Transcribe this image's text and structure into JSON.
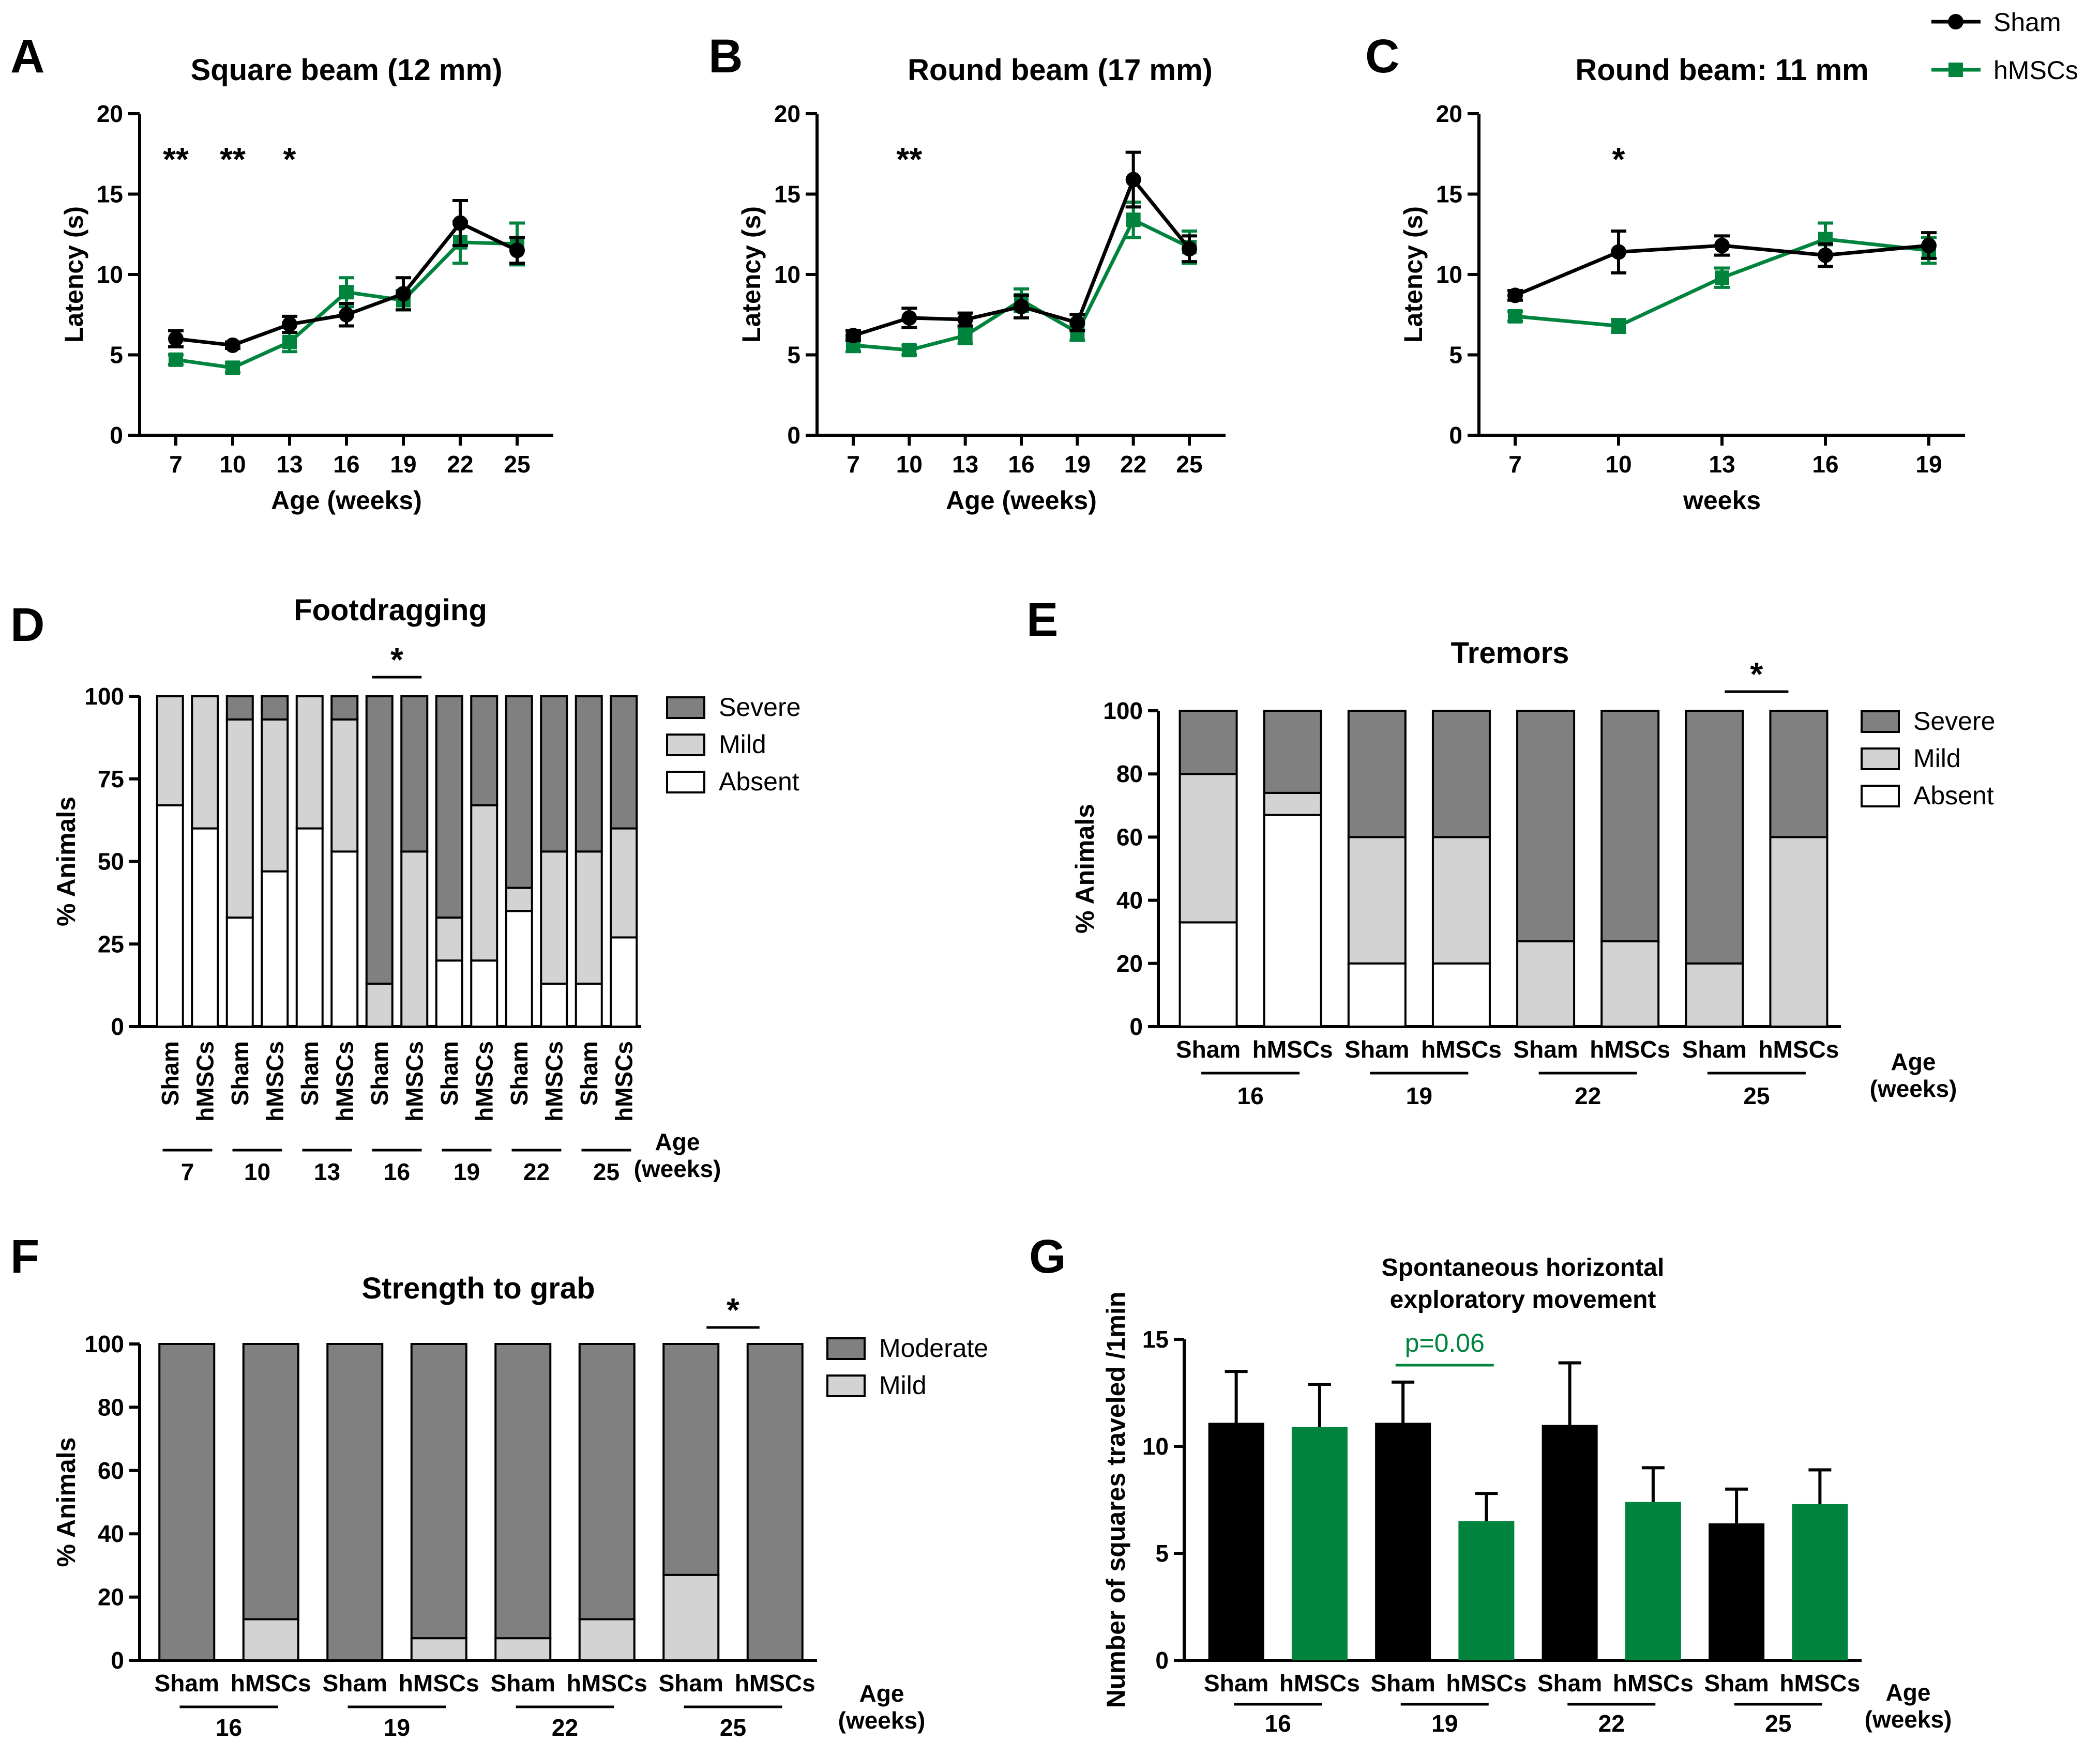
{
  "colors": {
    "sham": "#000000",
    "hmscs": "#00843d",
    "severe": "#808080",
    "mild": "#d3d3d3",
    "absent": "#ffffff",
    "pval": "#00843d"
  },
  "legend_top": {
    "sham": "Sham",
    "hmscs": "hMSCs"
  },
  "chart_data": [
    {
      "id": "A",
      "label": "A",
      "type": "line",
      "title": "Square beam (12 mm)",
      "xlabel": "Age (weeks)",
      "ylabel": "Latency (s)",
      "ylim": [
        0,
        20
      ],
      "yticks": [
        "0",
        "5",
        "10",
        "15",
        "20"
      ],
      "x": [
        "7",
        "10",
        "13",
        "16",
        "19",
        "22",
        "25"
      ],
      "series": [
        {
          "name": "Sham",
          "values": [
            6.0,
            5.6,
            6.9,
            7.5,
            8.8,
            13.2,
            11.5
          ],
          "err": [
            0.5,
            0.2,
            0.5,
            0.7,
            1.0,
            1.4,
            0.8
          ]
        },
        {
          "name": "hMSCs",
          "values": [
            4.7,
            4.2,
            5.8,
            8.9,
            8.4,
            12.0,
            11.9
          ],
          "err": [
            0.3,
            0.3,
            0.6,
            0.9,
            0.6,
            1.3,
            1.3
          ]
        }
      ],
      "annotations": [
        {
          "x": "7",
          "text": "**"
        },
        {
          "x": "10",
          "text": "**"
        },
        {
          "x": "13",
          "text": "*"
        }
      ]
    },
    {
      "id": "B",
      "label": "B",
      "type": "line",
      "title": "Round beam (17 mm)",
      "xlabel": "Age (weeks)",
      "ylabel": "Latency (s)",
      "ylim": [
        0,
        20
      ],
      "yticks": [
        "0",
        "5",
        "10",
        "15",
        "20"
      ],
      "x": [
        "7",
        "10",
        "13",
        "16",
        "19",
        "22",
        "25"
      ],
      "series": [
        {
          "name": "Sham",
          "values": [
            6.2,
            7.3,
            7.2,
            8.0,
            7.0,
            15.9,
            11.6
          ],
          "err": [
            0.3,
            0.6,
            0.4,
            0.7,
            0.5,
            1.7,
            0.8
          ]
        },
        {
          "name": "hMSCs",
          "values": [
            5.6,
            5.3,
            6.2,
            8.4,
            6.4,
            13.4,
            11.7
          ],
          "err": [
            0.4,
            0.3,
            0.5,
            0.7,
            0.5,
            1.1,
            1.0
          ]
        }
      ],
      "annotations": [
        {
          "x": "10",
          "text": "**"
        }
      ]
    },
    {
      "id": "C",
      "label": "C",
      "type": "line",
      "title": "Round beam: 11 mm",
      "xlabel": "weeks",
      "ylabel": "Latency (s)",
      "ylim": [
        0,
        20
      ],
      "yticks": [
        "0",
        "5",
        "10",
        "15",
        "20"
      ],
      "x": [
        "7",
        "10",
        "13",
        "16",
        "19"
      ],
      "series": [
        {
          "name": "Sham",
          "values": [
            8.7,
            11.4,
            11.8,
            11.2,
            11.8
          ],
          "err": [
            0.3,
            1.3,
            0.6,
            0.7,
            0.8
          ]
        },
        {
          "name": "hMSCs",
          "values": [
            7.4,
            6.8,
            9.8,
            12.2,
            11.5
          ],
          "err": [
            0.3,
            0.4,
            0.6,
            1.0,
            0.8
          ]
        }
      ],
      "annotations": [
        {
          "x": "10",
          "text": "*"
        }
      ]
    },
    {
      "id": "D",
      "label": "D",
      "type": "bar",
      "stacked": true,
      "title": "Footdragging",
      "ylabel": "% Animals",
      "ylim": [
        0,
        100
      ],
      "yticks": [
        "0",
        "25",
        "50",
        "75",
        "100"
      ],
      "groups": [
        "7",
        "10",
        "13",
        "16",
        "19",
        "22",
        "25"
      ],
      "bars": [
        "Sham",
        "hMSCs",
        "Sham",
        "hMSCs",
        "Sham",
        "hMSCs",
        "Sham",
        "hMSCs",
        "Sham",
        "hMSCs",
        "Sham",
        "hMSCs",
        "Sham",
        "hMSCs"
      ],
      "series": [
        {
          "name": "Absent",
          "values": [
            67,
            60,
            33,
            47,
            60,
            53,
            0,
            0,
            20,
            20,
            35,
            13,
            13,
            27
          ]
        },
        {
          "name": "Mild",
          "values": [
            33,
            40,
            60,
            46,
            40,
            40,
            13,
            53,
            13,
            47,
            7,
            40,
            40,
            33
          ]
        },
        {
          "name": "Severe",
          "values": [
            0,
            0,
            7,
            7,
            0,
            7,
            87,
            47,
            67,
            33,
            58,
            47,
            47,
            40
          ]
        }
      ],
      "legend": [
        "Severe",
        "Mild",
        "Absent"
      ],
      "age_label_1": "Age",
      "age_label_2": "(weeks)",
      "significance": {
        "group": "16",
        "text": "*"
      }
    },
    {
      "id": "E",
      "label": "E",
      "type": "bar",
      "stacked": true,
      "title": "Tremors",
      "ylabel": "% Animals",
      "ylim": [
        0,
        100
      ],
      "yticks": [
        "0",
        "20",
        "40",
        "60",
        "80",
        "100"
      ],
      "groups": [
        "16",
        "19",
        "22",
        "25"
      ],
      "bars": [
        "Sham",
        "hMSCs",
        "Sham",
        "hMSCs",
        "Sham",
        "hMSCs",
        "Sham",
        "hMSCs"
      ],
      "series": [
        {
          "name": "Absent",
          "values": [
            33,
            67,
            20,
            20,
            0,
            0,
            0,
            0
          ]
        },
        {
          "name": "Mild",
          "values": [
            47,
            7,
            40,
            40,
            27,
            27,
            20,
            60
          ]
        },
        {
          "name": "Severe",
          "values": [
            20,
            26,
            40,
            40,
            73,
            73,
            80,
            40
          ]
        }
      ],
      "legend": [
        "Severe",
        "Mild",
        "Absent"
      ],
      "age_label_1": "Age",
      "age_label_2": "(weeks)",
      "significance": {
        "group": "25",
        "text": "*"
      }
    },
    {
      "id": "F",
      "label": "F",
      "type": "bar",
      "stacked": true,
      "title": "Strength to grab",
      "ylabel": "% Animals",
      "ylim": [
        0,
        100
      ],
      "yticks": [
        "0",
        "20",
        "40",
        "60",
        "80",
        "100"
      ],
      "groups": [
        "16",
        "19",
        "22",
        "25"
      ],
      "bars": [
        "Sham",
        "hMSCs",
        "Sham",
        "hMSCs",
        "Sham",
        "hMSCs",
        "Sham",
        "hMSCs"
      ],
      "series": [
        {
          "name": "Mild",
          "values": [
            0,
            13,
            0,
            7,
            7,
            13,
            27,
            0
          ]
        },
        {
          "name": "Moderate",
          "values": [
            100,
            87,
            100,
            93,
            93,
            87,
            73,
            100
          ]
        }
      ],
      "legend": [
        "Moderate",
        "Mild"
      ],
      "age_label_1": "Age",
      "age_label_2": "(weeks)",
      "significance": {
        "group": "25",
        "text": "*"
      }
    },
    {
      "id": "G",
      "label": "G",
      "type": "bar",
      "title_1": "Spontaneous horizontal",
      "title_2": "exploratory movement",
      "ylabel": "Number of squares traveled /1min",
      "ylim": [
        0,
        15
      ],
      "yticks": [
        "0",
        "5",
        "10",
        "15"
      ],
      "groups": [
        "16",
        "19",
        "22",
        "25"
      ],
      "bars": [
        "Sham",
        "hMSCs",
        "Sham",
        "hMSCs",
        "Sham",
        "hMSCs",
        "Sham",
        "hMSCs"
      ],
      "values": [
        11.1,
        10.9,
        11.1,
        6.5,
        11.0,
        7.4,
        6.4,
        7.3
      ],
      "err": [
        2.4,
        2.0,
        1.9,
        1.3,
        2.9,
        1.6,
        1.6,
        1.6
      ],
      "age_label_1": "Age",
      "age_label_2": "(weeks)",
      "significance": {
        "group": "19",
        "text": "p=0.06"
      }
    }
  ]
}
